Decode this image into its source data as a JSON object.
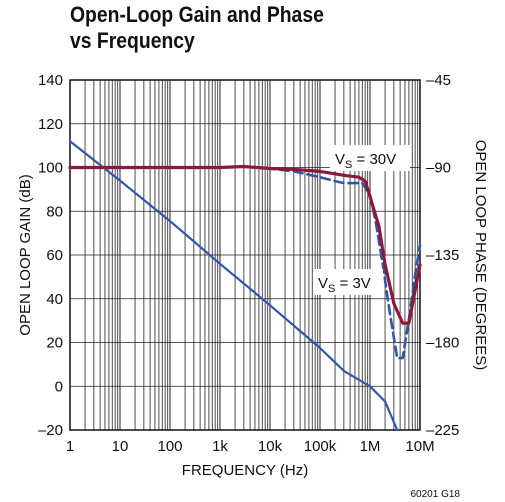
{
  "chart_data": {
    "type": "line",
    "title_line1": "Open-Loop Gain and Phase",
    "title_line2": "vs Frequency",
    "xlabel": "FREQUENCY (Hz)",
    "ylabel_left": "OPEN LOOP GAIN (dB)",
    "ylabel_right": "OPEN LOOP PHASE (DEGREES)",
    "x_scale": "log",
    "xlim": [
      1,
      10000000
    ],
    "ylim_left": [
      -20,
      140
    ],
    "ylim_right": [
      -225,
      -45
    ],
    "x_ticks": [
      {
        "value": 1,
        "label": "1"
      },
      {
        "value": 10,
        "label": "10"
      },
      {
        "value": 100,
        "label": "100"
      },
      {
        "value": 1000,
        "label": "1k"
      },
      {
        "value": 10000,
        "label": "10k"
      },
      {
        "value": 100000,
        "label": "100k"
      },
      {
        "value": 1000000,
        "label": "1M"
      },
      {
        "value": 10000000,
        "label": "10M"
      }
    ],
    "y_left_ticks": [
      "140",
      "120",
      "100",
      "80",
      "60",
      "40",
      "20",
      "0",
      "–20"
    ],
    "y_left_values": [
      140,
      120,
      100,
      80,
      60,
      40,
      20,
      0,
      -20
    ],
    "y_right_ticks": [
      {
        "value": -45,
        "label": "–45"
      },
      {
        "value": -90,
        "label": "–90"
      },
      {
        "value": -135,
        "label": "–135"
      },
      {
        "value": -180,
        "label": "–180"
      },
      {
        "value": -225,
        "label": "–225"
      }
    ],
    "grid": true,
    "annotations": {
      "vs30": {
        "prefix": "V",
        "sub": "S",
        "text": " = 30V"
      },
      "vs3": {
        "prefix": "V",
        "sub": "S",
        "text": " = 3V"
      }
    },
    "figure_note": "60201 G18",
    "colors": {
      "gain": "#3355aa",
      "phase_30v": "#8b1a3a",
      "phase_3v": "#3355aa"
    },
    "series": [
      {
        "axis": "left",
        "style": "solid",
        "x": [
          1,
          10,
          100,
          1000,
          10000,
          100000,
          300000,
          1000000,
          2000000,
          3500000
        ],
        "y": [
          112,
          94,
          75.5,
          56,
          37,
          17.5,
          7,
          0,
          -7,
          -20
        ]
      },
      {
        "axis": "right",
        "style": "solid",
        "x": [
          1,
          1000,
          3000,
          10000,
          30000,
          100000,
          300000,
          600000,
          800000,
          1000000,
          1500000,
          2000000,
          3000000,
          4500000,
          6000000,
          8000000,
          10000000
        ],
        "y": [
          -90,
          -90,
          -89.5,
          -90.5,
          -91,
          -92,
          -94,
          -95,
          -97,
          -105,
          -120,
          -140,
          -160,
          -170,
          -170,
          -153,
          -140
        ]
      },
      {
        "axis": "right",
        "style": "dashed",
        "x": [
          1,
          1000,
          3000,
          10000,
          30000,
          100000,
          200000,
          300000,
          500000,
          700000,
          1000000,
          1300000,
          1800000,
          2500000,
          3500000,
          4500000,
          6000000,
          8000000,
          10000000
        ],
        "y": [
          -90,
          -90,
          -89.5,
          -90.5,
          -92,
          -95,
          -97,
          -98,
          -98,
          -98,
          -104,
          -118,
          -140,
          -165,
          -188,
          -188,
          -168,
          -145,
          -130
        ]
      }
    ]
  }
}
